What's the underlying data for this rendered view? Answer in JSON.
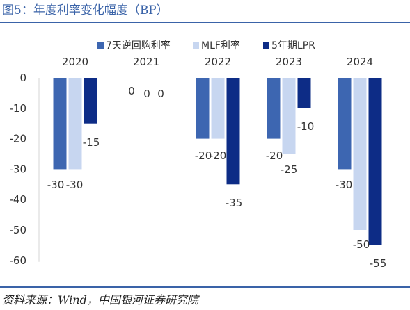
{
  "header": {
    "title": "图5：年度利率变化幅度（BP）"
  },
  "footer": {
    "source": "资料来源：Wind，中国银河证券研究院"
  },
  "colors": {
    "series1": "#3d66b1",
    "series2": "#c7d6f0",
    "series3": "#0d2c86",
    "rule": "#3a63a8"
  },
  "chart_data": {
    "type": "bar",
    "title": "年度利率变化幅度（BP）",
    "categories": [
      "2020",
      "2021",
      "2022",
      "2023",
      "2024"
    ],
    "series": [
      {
        "name": "7天逆回购利率",
        "values": [
          -30,
          0,
          -20,
          -20,
          -30
        ]
      },
      {
        "name": "MLF利率",
        "values": [
          -30,
          0,
          -20,
          -25,
          -50
        ]
      },
      {
        "name": "5年期LPR",
        "values": [
          -15,
          0,
          -35,
          -10,
          -55
        ]
      }
    ],
    "data_labels": [
      [
        "-30",
        "0",
        "-20",
        "-20",
        "-30"
      ],
      [
        "-30",
        "0",
        "-20",
        "-25",
        "-50"
      ],
      [
        "-15",
        "0",
        "-35",
        "-10",
        "-55"
      ]
    ],
    "yticks": [
      "0",
      "-10",
      "-20",
      "-30",
      "-40",
      "-50",
      "-60"
    ],
    "ylim": [
      -60,
      0
    ],
    "legend_position": "top",
    "grid": false
  }
}
